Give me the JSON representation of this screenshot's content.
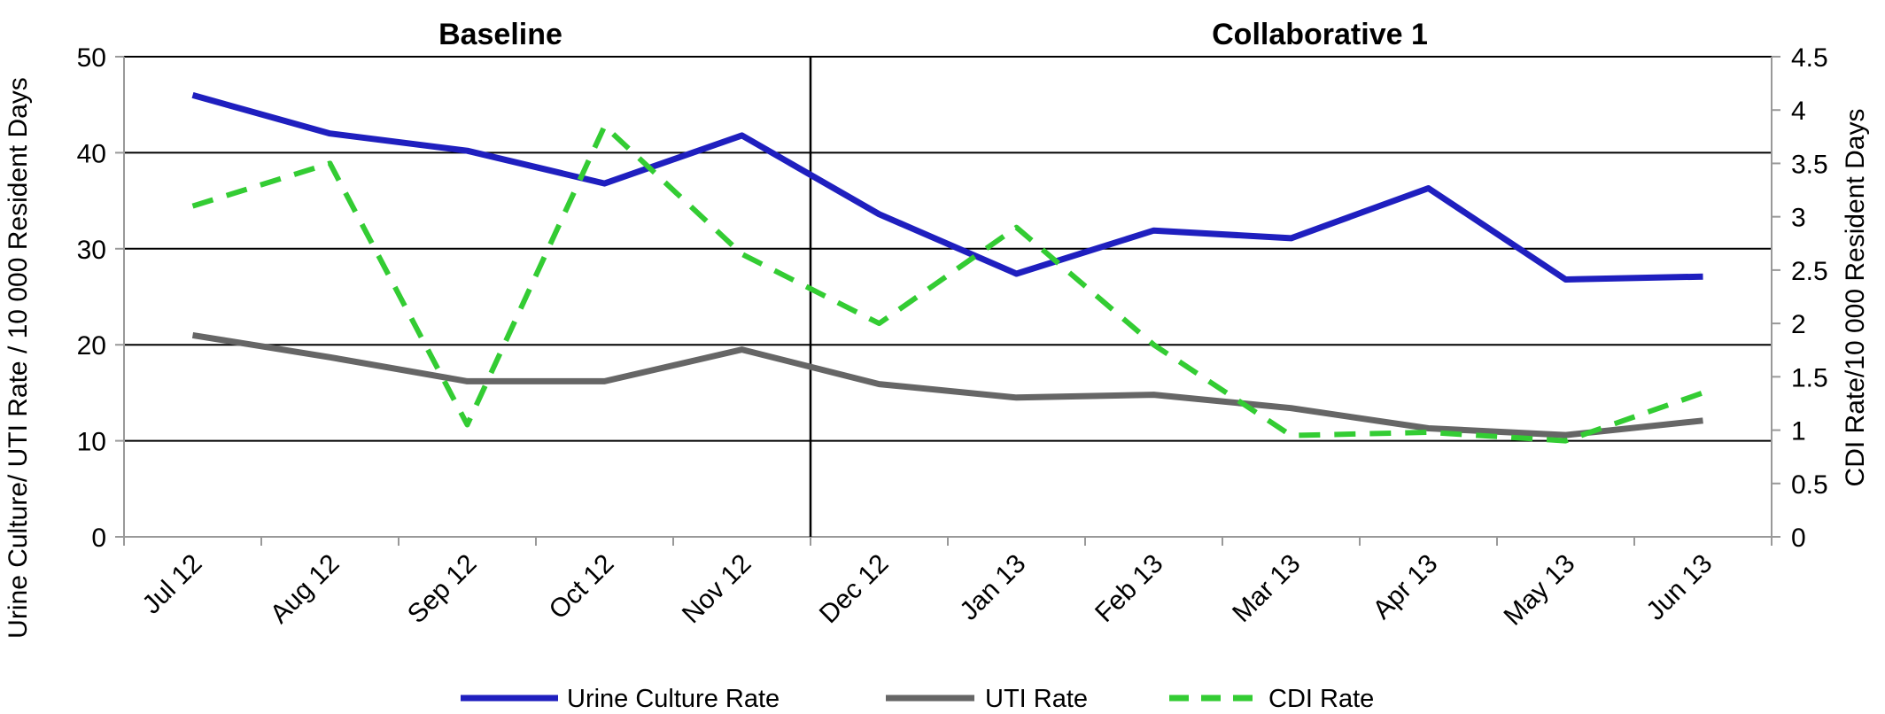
{
  "chart_data": {
    "type": "line",
    "title": "",
    "phases": [
      "Baseline",
      "Collaborative 1"
    ],
    "phase_divider_after": "Nov 12",
    "categories": [
      "Jul 12",
      "Aug 12",
      "Sep 12",
      "Oct 12",
      "Nov 12",
      "Dec 12",
      "Jan 13",
      "Feb 13",
      "Mar 13",
      "Apr 13",
      "May 13",
      "Jun 13"
    ],
    "ylabel_left": "Urine Culture/ UTI Rate / 10 000 Resident Days",
    "ylabel_right": "CDI Rate/10 000 Resident Days",
    "ylim_left": [
      0,
      50
    ],
    "yticks_left": [
      "0",
      "10",
      "20",
      "30",
      "40",
      "50"
    ],
    "ylim_right": [
      0,
      4.5
    ],
    "yticks_right": [
      "0",
      "0.5",
      "1",
      "1.5",
      "2",
      "2.5",
      "3",
      "3.5",
      "4",
      "4.5"
    ],
    "grid": "horizontal",
    "legend_position": "bottom",
    "series": [
      {
        "name": "Urine Culture Rate",
        "axis": "left",
        "color": "#1f1fbf",
        "style": "solid",
        "values": [
          46,
          42,
          40.2,
          36.8,
          41.8,
          33.6,
          27.4,
          31.9,
          31.1,
          36.3,
          26.8,
          27.1
        ]
      },
      {
        "name": "UTI Rate",
        "axis": "left",
        "color": "#666666",
        "style": "solid",
        "values": [
          21,
          18.7,
          16.2,
          16.2,
          19.5,
          15.9,
          14.5,
          14.8,
          13.4,
          11.3,
          10.6,
          12.1
        ]
      },
      {
        "name": "CDI Rate",
        "axis": "right",
        "color": "#33cc33",
        "style": "dashed",
        "values": [
          3.1,
          3.5,
          1.05,
          3.85,
          2.65,
          2.0,
          2.9,
          1.8,
          0.95,
          0.98,
          0.9,
          1.35
        ]
      }
    ]
  }
}
